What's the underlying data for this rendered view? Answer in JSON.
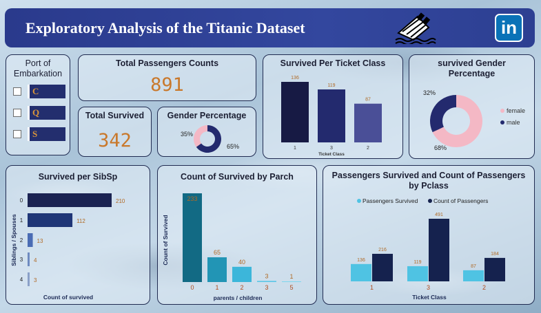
{
  "header": {
    "title": "Exploratory Analysis of the Titanic Dataset",
    "linkedin_label": "in"
  },
  "port": {
    "title": "Port of Embarkation",
    "items": [
      "C",
      "Q",
      "S"
    ]
  },
  "kpis": {
    "total_passengers_title": "Total Passengers Counts",
    "total_passengers_value": "891",
    "total_survived_title": "Total Survived",
    "total_survived_value": "342"
  },
  "chart_data": [
    {
      "id": "gender_percentage",
      "type": "pie",
      "title": "Gender Percentage",
      "values": [
        35,
        65
      ],
      "labels": [
        "35%",
        "65%"
      ],
      "colors": [
        "#f4b8c5",
        "#232a6e"
      ]
    },
    {
      "id": "survived_per_ticket_class",
      "type": "bar",
      "title": "Survived Per Ticket Class",
      "categories": [
        "1",
        "3",
        "2"
      ],
      "values": [
        136,
        119,
        87
      ],
      "xlabel": "Ticket Class",
      "colors": [
        "#171a44",
        "#232a6e",
        "#4a4f97"
      ]
    },
    {
      "id": "survived_gender_percentage",
      "type": "pie",
      "title": "survived Gender Percentage",
      "values": [
        68,
        32
      ],
      "labels": [
        "68%",
        "32%"
      ],
      "legend": [
        "female",
        "male"
      ],
      "legend_position": "right",
      "colors": [
        "#f4b8c5",
        "#232a6e"
      ]
    },
    {
      "id": "survived_per_sibsp",
      "type": "bar",
      "orientation": "horizontal",
      "title": "Survived per SibSp",
      "categories": [
        "0",
        "1",
        "2",
        "3",
        "4"
      ],
      "values": [
        210,
        112,
        13,
        4,
        3
      ],
      "xlabel": "Count of survived",
      "ylabel": "Siblings / Spouses",
      "colors": [
        "#1b2352",
        "#1f3677",
        "#4a6cb4",
        "#6e8ac0",
        "#8aa0c8"
      ]
    },
    {
      "id": "count_survived_by_parch",
      "type": "bar",
      "title": "Count of Survived by Parch",
      "categories": [
        "0",
        "1",
        "2",
        "3",
        "5"
      ],
      "values": [
        233,
        65,
        40,
        3,
        1
      ],
      "xlabel": "parents / children",
      "ylabel": "Count of Survived",
      "colors": [
        "#126a84",
        "#2295b5",
        "#3cb6da",
        "#5cc7e6",
        "#7dd6ee"
      ]
    },
    {
      "id": "survived_and_count_by_pclass",
      "type": "bar",
      "title": "Passengers Survived and Count of Passengers by Pclass",
      "categories": [
        "1",
        "3",
        "2"
      ],
      "series": [
        {
          "name": "Passengers Survived",
          "values": [
            136,
            119,
            87
          ],
          "color": "#4fc3e3"
        },
        {
          "name": "Count of Passengers",
          "values": [
            216,
            491,
            184
          ],
          "color": "#15224e"
        }
      ],
      "xlabel": "Ticket Class",
      "legend_position": "top-left"
    }
  ]
}
